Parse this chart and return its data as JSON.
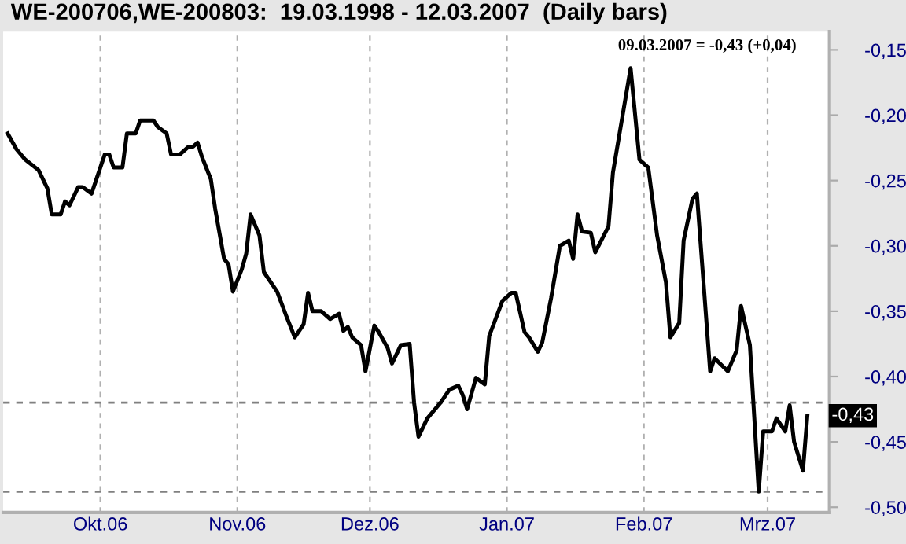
{
  "chart_data": {
    "type": "line",
    "title": "WE-200706,WE-200803:  19.03.1998 - 12.03.2007  (Daily bars)",
    "annotations": [
      "09.03.2007 = -0,43 (+0,04)",
      "-0,43"
    ],
    "x": [
      "2006-09-10",
      "2006-09-12",
      "2006-09-14",
      "2006-09-17",
      "2006-09-19",
      "2006-09-20",
      "2006-09-22",
      "2006-09-23",
      "2006-09-24",
      "2006-09-26",
      "2006-09-27",
      "2006-09-29",
      "2006-09-30",
      "2006-10-02",
      "2006-10-03",
      "2006-10-04",
      "2006-10-06",
      "2006-10-07",
      "2006-10-09",
      "2006-10-10",
      "2006-10-13",
      "2006-10-14",
      "2006-10-16",
      "2006-10-17",
      "2006-10-19",
      "2006-10-21",
      "2006-10-22",
      "2006-10-23",
      "2006-10-24",
      "2006-10-26",
      "2006-10-27",
      "2006-10-29",
      "2006-10-30",
      "2006-10-31",
      "2006-11-02",
      "2006-11-03",
      "2006-11-04",
      "2006-11-06",
      "2006-11-07",
      "2006-11-09",
      "2006-11-10",
      "2006-11-12",
      "2006-11-14",
      "2006-11-16",
      "2006-11-17",
      "2006-11-18",
      "2006-11-20",
      "2006-11-22",
      "2006-11-24",
      "2006-11-25",
      "2006-11-26",
      "2006-11-27",
      "2006-11-29",
      "2006-11-30",
      "2006-12-02",
      "2006-12-03",
      "2006-12-05",
      "2006-12-06",
      "2006-12-08",
      "2006-12-10",
      "2006-12-11",
      "2006-12-12",
      "2006-12-14",
      "2006-12-17",
      "2006-12-19",
      "2006-12-21",
      "2006-12-22",
      "2006-12-23",
      "2006-12-25",
      "2006-12-27",
      "2006-12-28",
      "2006-12-31",
      "2007-01-02",
      "2007-01-03",
      "2007-01-05",
      "2007-01-06",
      "2007-01-08",
      "2007-01-09",
      "2007-01-11",
      "2007-01-13",
      "2007-01-15",
      "2007-01-16",
      "2007-01-17",
      "2007-01-18",
      "2007-01-20",
      "2007-01-21",
      "2007-01-24",
      "2007-01-25",
      "2007-01-29",
      "2007-01-31",
      "2007-02-02",
      "2007-02-04",
      "2007-02-06",
      "2007-02-07",
      "2007-02-09",
      "2007-02-10",
      "2007-02-12",
      "2007-02-13",
      "2007-02-16",
      "2007-02-17",
      "2007-02-20",
      "2007-02-22",
      "2007-02-23",
      "2007-02-25",
      "2007-02-26",
      "2007-02-27",
      "2007-02-28",
      "2007-03-02",
      "2007-03-03",
      "2007-03-05",
      "2007-03-06",
      "2007-03-07",
      "2007-03-09",
      "2007-03-10"
    ],
    "series": [
      {
        "color": "#000000",
        "values": [
          -0.214,
          -0.226,
          -0.234,
          -0.242,
          -0.256,
          -0.276,
          -0.276,
          -0.266,
          -0.269,
          -0.255,
          -0.255,
          -0.26,
          -0.25,
          -0.23,
          -0.23,
          -0.24,
          -0.24,
          -0.214,
          -0.214,
          -0.204,
          -0.204,
          -0.209,
          -0.214,
          -0.23,
          -0.23,
          -0.224,
          -0.224,
          -0.221,
          -0.232,
          -0.249,
          -0.272,
          -0.31,
          -0.314,
          -0.335,
          -0.318,
          -0.306,
          -0.276,
          -0.292,
          -0.32,
          -0.33,
          -0.335,
          -0.353,
          -0.37,
          -0.36,
          -0.336,
          -0.35,
          -0.35,
          -0.356,
          -0.352,
          -0.365,
          -0.362,
          -0.37,
          -0.376,
          -0.396,
          -0.361,
          -0.366,
          -0.378,
          -0.39,
          -0.376,
          -0.375,
          -0.42,
          -0.446,
          -0.432,
          -0.42,
          -0.41,
          -0.407,
          -0.414,
          -0.425,
          -0.401,
          -0.406,
          -0.369,
          -0.342,
          -0.336,
          -0.336,
          -0.366,
          -0.37,
          -0.381,
          -0.374,
          -0.34,
          -0.3,
          -0.296,
          -0.31,
          -0.276,
          -0.289,
          -0.29,
          -0.305,
          -0.285,
          -0.244,
          -0.164,
          -0.234,
          -0.24,
          -0.292,
          -0.328,
          -0.37,
          -0.359,
          -0.296,
          -0.264,
          -0.26,
          -0.396,
          -0.386,
          -0.396,
          -0.38,
          -0.346,
          -0.376,
          -0.432,
          -0.488,
          -0.442,
          -0.442,
          -0.432,
          -0.442,
          -0.422,
          -0.45,
          -0.472,
          -0.43
        ]
      }
    ],
    "xlim": [
      "2006-09-09",
      "2007-03-15"
    ],
    "xticks": [
      {
        "value": "2006-10-01",
        "label": "Okt.06"
      },
      {
        "value": "2006-11-01",
        "label": "Nov.06"
      },
      {
        "value": "2006-12-01",
        "label": "Dez.06"
      },
      {
        "value": "2007-01-01",
        "label": "Jan.07"
      },
      {
        "value": "2007-02-01",
        "label": "Feb.07"
      },
      {
        "value": "2007-03-01",
        "label": "Mrz.07"
      }
    ],
    "ylim": [
      -0.504,
      -0.136
    ],
    "yticks": [
      {
        "value": -0.5,
        "label": "-0,50"
      },
      {
        "value": -0.45,
        "label": "-0,45"
      },
      {
        "value": -0.4,
        "label": "-0,40"
      },
      {
        "value": -0.35,
        "label": "-0,35"
      },
      {
        "value": -0.3,
        "label": "-0,30"
      },
      {
        "value": -0.25,
        "label": "-0,25"
      },
      {
        "value": -0.2,
        "label": "-0,20"
      },
      {
        "value": -0.15,
        "label": "-0,15"
      }
    ],
    "ref_lines": [
      {
        "axis": "y",
        "value": -0.42,
        "color": "#808080",
        "line_style": "dashed"
      },
      {
        "axis": "y",
        "value": -0.488,
        "color": "#808080",
        "line_style": "dashed"
      }
    ],
    "grid": "x",
    "legend": false,
    "marker": "none",
    "line_style": "solid"
  }
}
